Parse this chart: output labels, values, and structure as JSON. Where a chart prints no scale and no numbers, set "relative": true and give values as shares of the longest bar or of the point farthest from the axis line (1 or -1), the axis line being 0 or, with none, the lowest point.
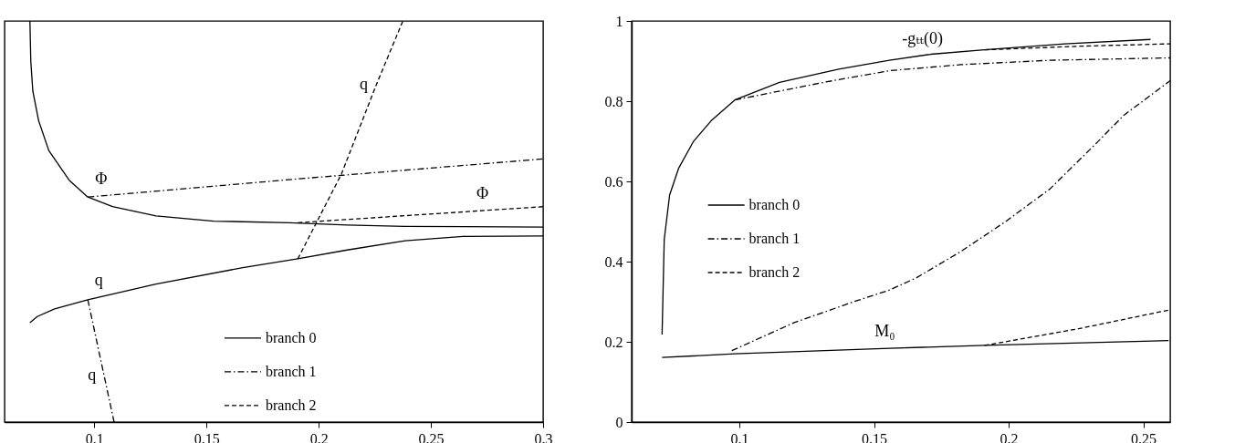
{
  "chart_data": [
    {
      "type": "line",
      "relative": true,
      "xlim": [
        0.06,
        0.3
      ],
      "xticks": [
        0.1,
        0.15,
        0.2,
        0.25,
        0.3
      ],
      "tick_labels": "x",
      "legend": "bottom",
      "series": [
        {
          "name": "branch 0",
          "color": "#000000",
          "line_style": "solid",
          "x": [
            0.0713,
            0.0717,
            0.0726,
            0.0752,
            0.0797,
            0.0888,
            0.0971,
            0.1081,
            0.1275,
            0.1532,
            0.1869,
            0.2127,
            0.2384,
            0.3
          ],
          "values": [
            1.0,
            0.899,
            0.825,
            0.751,
            0.677,
            0.603,
            0.561,
            0.537,
            0.514,
            0.501,
            0.497,
            0.491,
            0.488,
            0.486
          ]
        },
        {
          "name": "branch 0",
          "color": "#000000",
          "line_style": "solid",
          "x": [
            0.0713,
            0.0746,
            0.0823,
            0.0971,
            0.1275,
            0.1662,
            0.1907,
            0.2127,
            0.2385,
            0.2643,
            0.3
          ],
          "values": [
            0.248,
            0.263,
            0.282,
            0.305,
            0.344,
            0.385,
            0.407,
            0.429,
            0.452,
            0.463,
            0.464
          ]
        },
        {
          "name": "branch 1",
          "color": "#000000",
          "line_style": "dashdot",
          "x": [
            0.0971,
            0.1946,
            0.3
          ],
          "values": [
            0.561,
            0.608,
            0.656
          ]
        },
        {
          "name": "branch 1",
          "color": "#000000",
          "line_style": "dashdot",
          "x": [
            0.0971,
            0.1088
          ],
          "values": [
            0.305,
            0.0
          ]
        },
        {
          "name": "branch 2",
          "color": "#000000",
          "line_style": "dashed",
          "x": [
            0.1907,
            0.3
          ],
          "values": [
            0.497,
            0.537
          ]
        },
        {
          "name": "branch 2",
          "color": "#000000",
          "line_style": "dashed",
          "x": [
            0.1907,
            0.2101,
            0.2256,
            0.2375
          ],
          "values": [
            0.407,
            0.618,
            0.84,
            1.0
          ]
        }
      ],
      "annotations": [
        {
          "text": "Φ",
          "x": 0.103,
          "y": 0.564
        },
        {
          "text": "Φ",
          "x": 0.273,
          "y": 0.527
        },
        {
          "text": "q",
          "x": 0.2256,
          "y": 0.84
        },
        {
          "text": "q",
          "x": 0.102,
          "y": 0.311
        },
        {
          "text": "q",
          "x": 0.1044,
          "y": 0.115
        }
      ]
    },
    {
      "type": "line",
      "xlim": [
        0.06,
        0.26
      ],
      "xticks": [
        0.1,
        0.15,
        0.2,
        0.25
      ],
      "ylim": [
        0,
        1
      ],
      "yticks": [
        0,
        0.2,
        0.4,
        0.6,
        0.8,
        1
      ],
      "legend": "left",
      "series": [
        {
          "name": "branch 0",
          "color": "#000000",
          "line_style": "solid",
          "x": [
            0.0713,
            0.0721,
            0.0741,
            0.0774,
            0.0829,
            0.0895,
            0.0983,
            0.1149,
            0.1369,
            0.1557,
            0.1711,
            0.191,
            0.2208,
            0.2527
          ],
          "values": [
            0.218,
            0.455,
            0.566,
            0.632,
            0.699,
            0.751,
            0.803,
            0.847,
            0.88,
            0.902,
            0.917,
            0.928,
            0.943,
            0.954
          ]
        },
        {
          "name": "branch 0",
          "color": "#000000",
          "line_style": "solid",
          "x": [
            0.0713,
            0.0983,
            0.1557,
            0.191,
            0.2594
          ],
          "values": [
            0.161,
            0.17,
            0.184,
            0.191,
            0.203
          ]
        },
        {
          "name": "branch 1",
          "color": "#000000",
          "line_style": "dashdot",
          "x": [
            0.0983,
            0.1314,
            0.1557,
            0.1822,
            0.2153,
            0.26
          ],
          "values": [
            0.803,
            0.847,
            0.876,
            0.891,
            0.902,
            0.908
          ]
        },
        {
          "name": "branch 1",
          "color": "#000000",
          "line_style": "dashdot",
          "x": [
            0.0972,
            0.1204,
            0.1425,
            0.1557,
            0.1656,
            0.1822,
            0.1987,
            0.2153,
            0.2318,
            0.2428,
            0.26
          ],
          "values": [
            0.178,
            0.248,
            0.3,
            0.329,
            0.359,
            0.425,
            0.499,
            0.581,
            0.69,
            0.765,
            0.851
          ]
        },
        {
          "name": "branch 2",
          "color": "#000000",
          "line_style": "dashed",
          "x": [
            0.191,
            0.2263,
            0.26
          ],
          "values": [
            0.928,
            0.937,
            0.943
          ]
        },
        {
          "name": "branch 2",
          "color": "#000000",
          "line_style": "dashed",
          "x": [
            0.191,
            0.2263,
            0.26
          ],
          "values": [
            0.191,
            0.233,
            0.28
          ]
        }
      ],
      "annotations": [
        {
          "text": "-gₜₜ(0)",
          "x": 0.168,
          "y": 0.914
        },
        {
          "text": "M₀",
          "x": 0.154,
          "y": 0.184
        }
      ]
    }
  ]
}
